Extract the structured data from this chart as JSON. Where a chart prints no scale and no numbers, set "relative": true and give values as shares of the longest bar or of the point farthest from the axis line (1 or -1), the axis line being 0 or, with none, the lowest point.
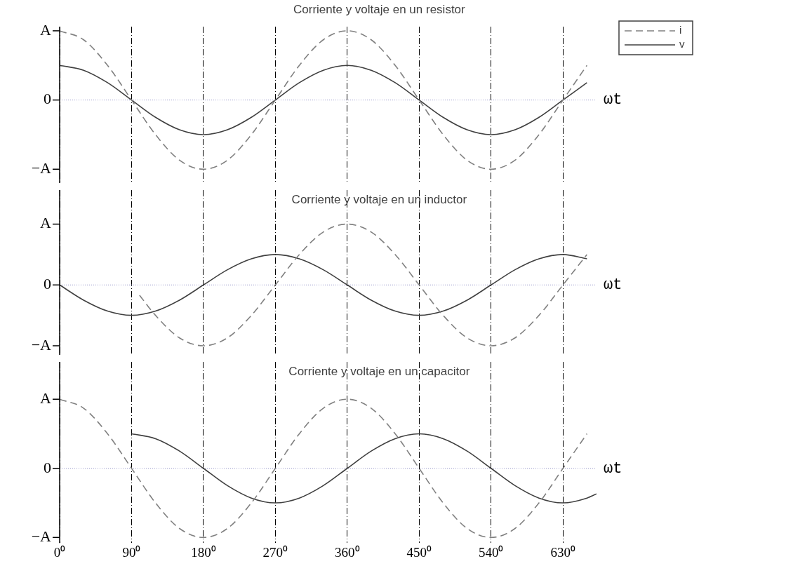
{
  "chart_data": [
    {
      "type": "line",
      "title": "Corriente y voltaje en un resistor",
      "xlabel": "ωt",
      "legend": "top right",
      "tick_labels": false,
      "relative": true,
      "grid": "x",
      "line_style": "solid",
      "marker": "none",
      "x": [
        0,
        30,
        60,
        90,
        120,
        150,
        180,
        210,
        240,
        270,
        300,
        330,
        360,
        390,
        420,
        450,
        480,
        510,
        540,
        570,
        600,
        630,
        660
      ],
      "xlim": [
        0,
        672
      ],
      "xticks": [
        0,
        90,
        180,
        270,
        360,
        450,
        540,
        630
      ],
      "annotations": [
        "A",
        "0",
        "−A"
      ],
      "ref_lines": [
        {
          "axis": "y",
          "value": 0,
          "color": "#9999cc",
          "line_style": "dotted"
        }
      ],
      "series": [
        {
          "name": "i",
          "color": "#808080",
          "line_style": "dashed",
          "values": [
            1,
            0.87,
            0.5,
            0,
            -0.5,
            -0.87,
            -1,
            -0.87,
            -0.5,
            0,
            0.5,
            0.87,
            1,
            0.87,
            0.5,
            0,
            -0.5,
            -0.87,
            -1,
            -0.87,
            -0.5,
            0,
            0.5
          ]
        },
        {
          "name": "v",
          "color": "#404040",
          "values": [
            0.5,
            0.43,
            0.25,
            0,
            -0.25,
            -0.43,
            -0.5,
            -0.43,
            -0.25,
            0,
            0.25,
            0.43,
            0.5,
            0.43,
            0.25,
            0,
            -0.25,
            -0.43,
            -0.5,
            -0.43,
            -0.25,
            0,
            0.25
          ]
        }
      ]
    },
    {
      "type": "line",
      "title": "Corriente y voltaje en un inductor",
      "xlabel": "ωt",
      "tick_labels": false,
      "relative": true,
      "grid": "x",
      "line_style": "solid",
      "marker": "none",
      "x": [
        0,
        30,
        60,
        90,
        120,
        150,
        180,
        210,
        240,
        270,
        300,
        330,
        360,
        390,
        420,
        450,
        480,
        510,
        540,
        570,
        600,
        630,
        660
      ],
      "xlim": [
        0,
        672
      ],
      "xticks": [
        0,
        90,
        180,
        270,
        360,
        450,
        540,
        630
      ],
      "annotations": [
        "A",
        "0",
        "−A"
      ],
      "ref_lines": [
        {
          "axis": "y",
          "value": 0,
          "color": "#9999cc",
          "line_style": "dotted"
        }
      ],
      "series": [
        {
          "color": "#808080",
          "line_style": "dashed",
          "x": [
            100,
            120,
            150,
            180,
            210,
            240,
            270,
            300,
            330,
            360,
            390,
            420,
            450,
            480,
            510,
            540,
            570,
            600,
            630,
            660
          ],
          "values": [
            -0.17,
            -0.5,
            -0.87,
            -1,
            -0.87,
            -0.5,
            0,
            0.5,
            0.87,
            1,
            0.87,
            0.5,
            0,
            -0.5,
            -0.87,
            -1,
            -0.87,
            -0.5,
            0,
            0.5
          ]
        },
        {
          "color": "#404040",
          "values": [
            0,
            -0.25,
            -0.43,
            -0.5,
            -0.43,
            -0.25,
            0,
            0.25,
            0.43,
            0.5,
            0.43,
            0.25,
            0,
            -0.25,
            -0.43,
            -0.5,
            -0.43,
            -0.25,
            0,
            0.25,
            0.43,
            0.5,
            0.43
          ]
        }
      ]
    },
    {
      "type": "line",
      "title": "Corriente y voltaje en un capacitor",
      "xlabel": "ωt",
      "tick_labels": "x",
      "relative": true,
      "grid": "x",
      "line_style": "solid",
      "marker": "none",
      "x": [
        0,
        30,
        60,
        90,
        120,
        150,
        180,
        210,
        240,
        270,
        300,
        330,
        360,
        390,
        420,
        450,
        480,
        510,
        540,
        570,
        600,
        630,
        660
      ],
      "xlim": [
        0,
        672
      ],
      "xticks": [
        {
          "value": 0,
          "label": "0⁰"
        },
        {
          "value": 90,
          "label": "90⁰"
        },
        {
          "value": 180,
          "label": "180⁰"
        },
        {
          "value": 270,
          "label": "270⁰"
        },
        {
          "value": 360,
          "label": "360⁰"
        },
        {
          "value": 450,
          "label": "450⁰"
        },
        {
          "value": 540,
          "label": "540⁰"
        },
        {
          "value": 630,
          "label": "630⁰"
        }
      ],
      "annotations": [
        "A",
        "0",
        "−A"
      ],
      "ref_lines": [
        {
          "axis": "y",
          "value": 0,
          "color": "#9999cc",
          "line_style": "dotted"
        }
      ],
      "series": [
        {
          "color": "#808080",
          "line_style": "dashed",
          "values": [
            1,
            0.87,
            0.5,
            0,
            -0.5,
            -0.87,
            -1,
            -0.87,
            -0.5,
            0,
            0.5,
            0.87,
            1,
            0.87,
            0.5,
            0,
            -0.5,
            -0.87,
            -1,
            -0.87,
            -0.5,
            0,
            0.5
          ]
        },
        {
          "color": "#404040",
          "x": [
            90,
            120,
            150,
            180,
            210,
            240,
            270,
            300,
            330,
            360,
            390,
            420,
            450,
            480,
            510,
            540,
            570,
            600,
            630,
            660,
            672
          ],
          "values": [
            0.5,
            0.43,
            0.25,
            0,
            -0.25,
            -0.43,
            -0.5,
            -0.43,
            -0.25,
            0,
            0.25,
            0.43,
            0.5,
            0.43,
            0.25,
            0,
            -0.25,
            -0.43,
            -0.5,
            -0.43,
            -0.37
          ]
        }
      ]
    }
  ]
}
